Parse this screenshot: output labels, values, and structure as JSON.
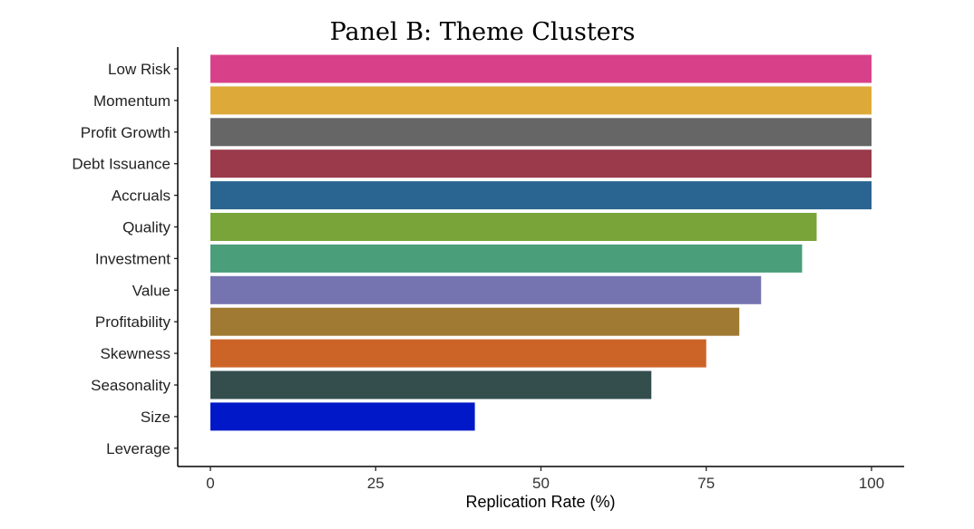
{
  "chart_data": {
    "type": "bar",
    "orientation": "horizontal",
    "title": "Panel B: Theme Clusters",
    "xlabel": "Replication Rate (%)",
    "ylabel": "",
    "xlim": [
      0,
      100
    ],
    "xticks": [
      "0",
      "25",
      "50",
      "75",
      "100"
    ],
    "grid": false,
    "categories": [
      "Low Risk",
      "Momentum",
      "Profit Growth",
      "Debt Issuance",
      "Accruals",
      "Quality",
      "Investment",
      "Value",
      "Profitability",
      "Skewness",
      "Seasonality",
      "Size",
      "Leverage"
    ],
    "values": [
      100,
      100,
      100,
      100,
      100,
      91.7,
      89.5,
      83.3,
      80,
      75,
      66.7,
      40,
      0
    ],
    "colors": [
      "#d8418a",
      "#ddaa3a",
      "#666666",
      "#9a3a4a",
      "#2a6490",
      "#78a43a",
      "#4a9e7a",
      "#7674b0",
      "#a07a32",
      "#cc6428",
      "#344e4e",
      "#0018c8",
      "#ffffff"
    ]
  }
}
